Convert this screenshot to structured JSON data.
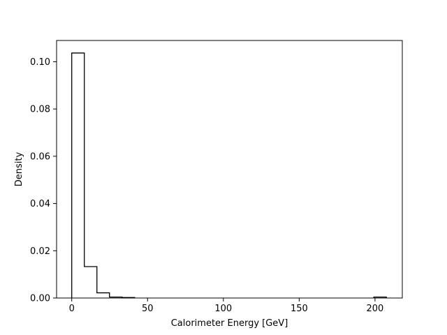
{
  "chart_data": {
    "type": "bar",
    "histtype": "step",
    "title": "",
    "xlabel": "Calorimeter Energy [GeV]",
    "ylabel": "Density",
    "xlim": [
      -10,
      218
    ],
    "ylim": [
      0,
      0.109
    ],
    "xticks": [
      0,
      50,
      100,
      150,
      200
    ],
    "xtick_labels": [
      "0",
      "50",
      "100",
      "150",
      "200"
    ],
    "yticks": [
      0,
      0.02,
      0.04,
      0.06,
      0.08,
      0.1
    ],
    "ytick_labels": [
      "0.00",
      "0.02",
      "0.04",
      "0.06",
      "0.08",
      "0.10"
    ],
    "bin_edges": [
      0,
      8.3,
      16.6,
      24.9,
      33.2,
      41.5,
      49.8,
      58.1,
      66.4,
      74.7,
      83.0,
      91.3,
      99.6,
      107.9,
      116.2,
      124.5,
      132.8,
      141.1,
      149.4,
      157.7,
      166.0,
      174.3,
      182.6,
      190.9,
      199.2,
      207.5
    ],
    "values": [
      0.1037,
      0.0133,
      0.0022,
      0.0004,
      0.0002,
      0,
      0,
      0,
      0,
      0,
      0,
      0,
      0,
      0,
      0,
      0,
      0,
      0,
      0,
      0,
      0,
      0,
      0,
      0,
      0.0004
    ],
    "grid": false,
    "legend": "none",
    "color": "#000000"
  }
}
